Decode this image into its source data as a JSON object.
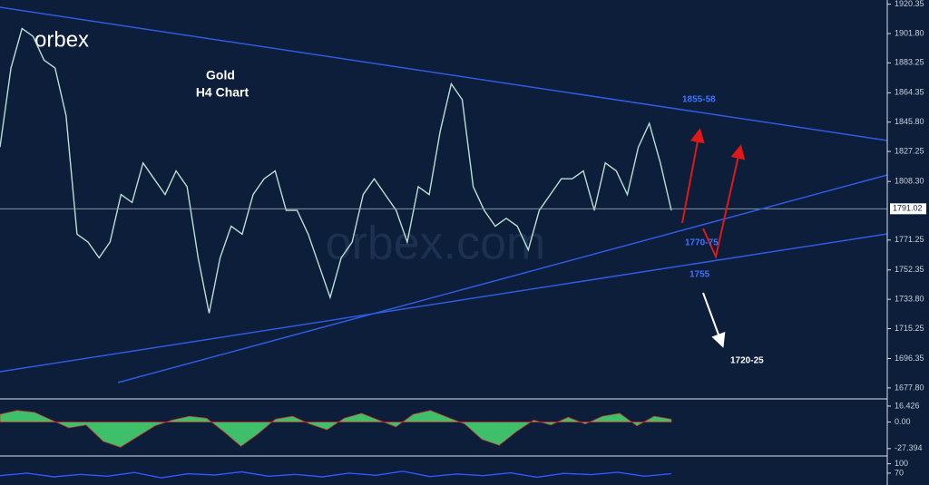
{
  "logo": "orbex",
  "watermark": "orbex.com",
  "chart_data": [
    {
      "type": "line",
      "title": "Gold",
      "subtitle": "H4 Chart",
      "color": "#b8e0d0",
      "values": [
        1830,
        1880,
        1905,
        1900,
        1885,
        1880,
        1850,
        1775,
        1770,
        1760,
        1770,
        1800,
        1795,
        1820,
        1810,
        1800,
        1815,
        1805,
        1760,
        1725,
        1760,
        1780,
        1775,
        1800,
        1810,
        1815,
        1790,
        1790,
        1775,
        1755,
        1735,
        1760,
        1770,
        1800,
        1810,
        1800,
        1790,
        1770,
        1805,
        1800,
        1840,
        1870,
        1860,
        1805,
        1790,
        1780,
        1785,
        1780,
        1765,
        1790,
        1800,
        1810,
        1810,
        1815,
        1790,
        1820,
        1815,
        1800,
        1830,
        1845,
        1820,
        1790
      ],
      "ylim": [
        1672,
        1923
      ],
      "yticks": [
        1920.35,
        {
          "value": 1901.8,
          "label": "1901.80"
        },
        1883.25,
        1864.35,
        {
          "value": 1845.8,
          "label": "1845.80"
        },
        1827.25,
        {
          "value": 1808.3,
          "label": "1808.30"
        },
        1771.25,
        1752.35,
        {
          "value": 1733.8,
          "label": "1733.80"
        },
        1715.25,
        1696.35,
        {
          "value": 1677.8,
          "label": "1677.80"
        }
      ],
      "current_price": 1791.02,
      "annotations": [
        "1855-58",
        "1770-75",
        "1755",
        "1720-25"
      ]
    },
    {
      "type": "area",
      "color": "#3fbf6a",
      "values": [
        8,
        12,
        10,
        2,
        -6,
        -3,
        -20,
        -26,
        -15,
        -4,
        2,
        6,
        4,
        -10,
        -25,
        -12,
        3,
        6,
        -2,
        -8,
        4,
        9,
        2,
        -5,
        8,
        12,
        5,
        -2,
        -18,
        -24,
        -10,
        2,
        -3,
        5,
        -2,
        6,
        9,
        -4,
        6,
        3
      ],
      "ylim": [
        -35,
        22
      ],
      "yticks": [
        16.426,
        {
          "value": 0,
          "label": "0.00"
        },
        -27.394
      ]
    },
    {
      "type": "line",
      "color": "#3355ff",
      "values": [
        62,
        70,
        58,
        66,
        60,
        72,
        55,
        68,
        64,
        74,
        60,
        66,
        58,
        70,
        63,
        76,
        59,
        67,
        62,
        71,
        57,
        69,
        65,
        73,
        60,
        68
      ],
      "ylim": [
        32,
        119
      ],
      "yticks": [
        100,
        70
      ]
    }
  ]
}
